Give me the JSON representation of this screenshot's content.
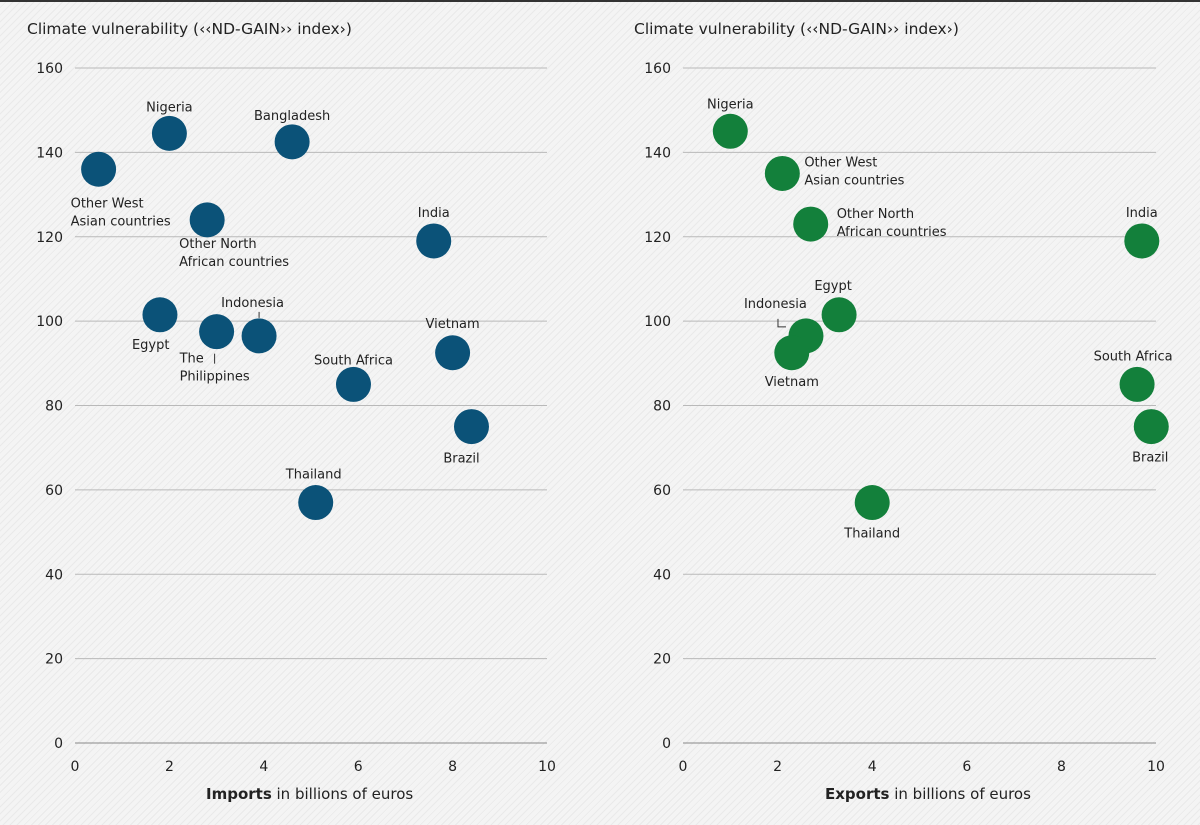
{
  "chart_data": [
    {
      "type": "scatter",
      "ylabel": "Climate vulnerability (‹‹ND-GAIN›› index›)",
      "xlabel_bold": "Imports",
      "xlabel_rest": " in billions of euros",
      "xlim": [
        0,
        10
      ],
      "ylim": [
        0,
        160
      ],
      "xticks": [
        "0",
        "2",
        "4",
        "6",
        "8",
        "10"
      ],
      "yticks": [
        "0",
        "20",
        "40",
        "60",
        "80",
        "100",
        "120",
        "140",
        "160"
      ],
      "grid": true,
      "color": "#0b5278",
      "points": [
        {
          "label": [
            "Nigeria"
          ],
          "x": 2.0,
          "y": 144.5
        },
        {
          "label": [
            "Bangladesh"
          ],
          "x": 4.6,
          "y": 142.5
        },
        {
          "label": [
            "Other West",
            "Asian countries"
          ],
          "x": 0.5,
          "y": 136.0
        },
        {
          "label": [
            "Other North",
            "African countries"
          ],
          "x": 2.8,
          "y": 124.0
        },
        {
          "label": [
            "India"
          ],
          "x": 7.6,
          "y": 119.0
        },
        {
          "label": [
            "Egypt"
          ],
          "x": 1.8,
          "y": 101.5
        },
        {
          "label": [
            "The",
            "Philippines"
          ],
          "x": 3.0,
          "y": 97.5
        },
        {
          "label": [
            "Indonesia"
          ],
          "x": 3.9,
          "y": 96.5
        },
        {
          "label": [
            "Vietnam"
          ],
          "x": 8.0,
          "y": 92.5
        },
        {
          "label": [
            "South Africa"
          ],
          "x": 5.9,
          "y": 85.0
        },
        {
          "label": [
            "Brazil"
          ],
          "x": 8.4,
          "y": 75.0
        },
        {
          "label": [
            "Thailand"
          ],
          "x": 5.1,
          "y": 57.0
        }
      ]
    },
    {
      "type": "scatter",
      "ylabel": "Climate vulnerability (‹‹ND-GAIN›› index›)",
      "xlabel_bold": "Exports",
      "xlabel_rest": " in billions of euros",
      "xlim": [
        0,
        10
      ],
      "ylim": [
        0,
        160
      ],
      "xticks": [
        "0",
        "2",
        "4",
        "6",
        "8",
        "10"
      ],
      "yticks": [
        "0",
        "20",
        "40",
        "60",
        "80",
        "100",
        "120",
        "140",
        "160"
      ],
      "grid": true,
      "color": "#13803b",
      "points": [
        {
          "label": [
            "Nigeria"
          ],
          "x": 1.0,
          "y": 145.0
        },
        {
          "label": [
            "Other West",
            "Asian countries"
          ],
          "x": 2.1,
          "y": 135.0
        },
        {
          "label": [
            "Other North",
            "African countries"
          ],
          "x": 2.7,
          "y": 123.0
        },
        {
          "label": [
            "India"
          ],
          "x": 9.7,
          "y": 119.0
        },
        {
          "label": [
            "Egypt"
          ],
          "x": 3.3,
          "y": 101.5
        },
        {
          "label": [
            "Indonesia"
          ],
          "x": 2.6,
          "y": 96.5
        },
        {
          "label": [
            "Vietnam"
          ],
          "x": 2.3,
          "y": 92.5
        },
        {
          "label": [
            "South Africa"
          ],
          "x": 9.6,
          "y": 85.0
        },
        {
          "label": [
            "Brazil"
          ],
          "x": 9.9,
          "y": 75.0
        },
        {
          "label": [
            "Thailand"
          ],
          "x": 4.0,
          "y": 57.0
        }
      ]
    }
  ]
}
